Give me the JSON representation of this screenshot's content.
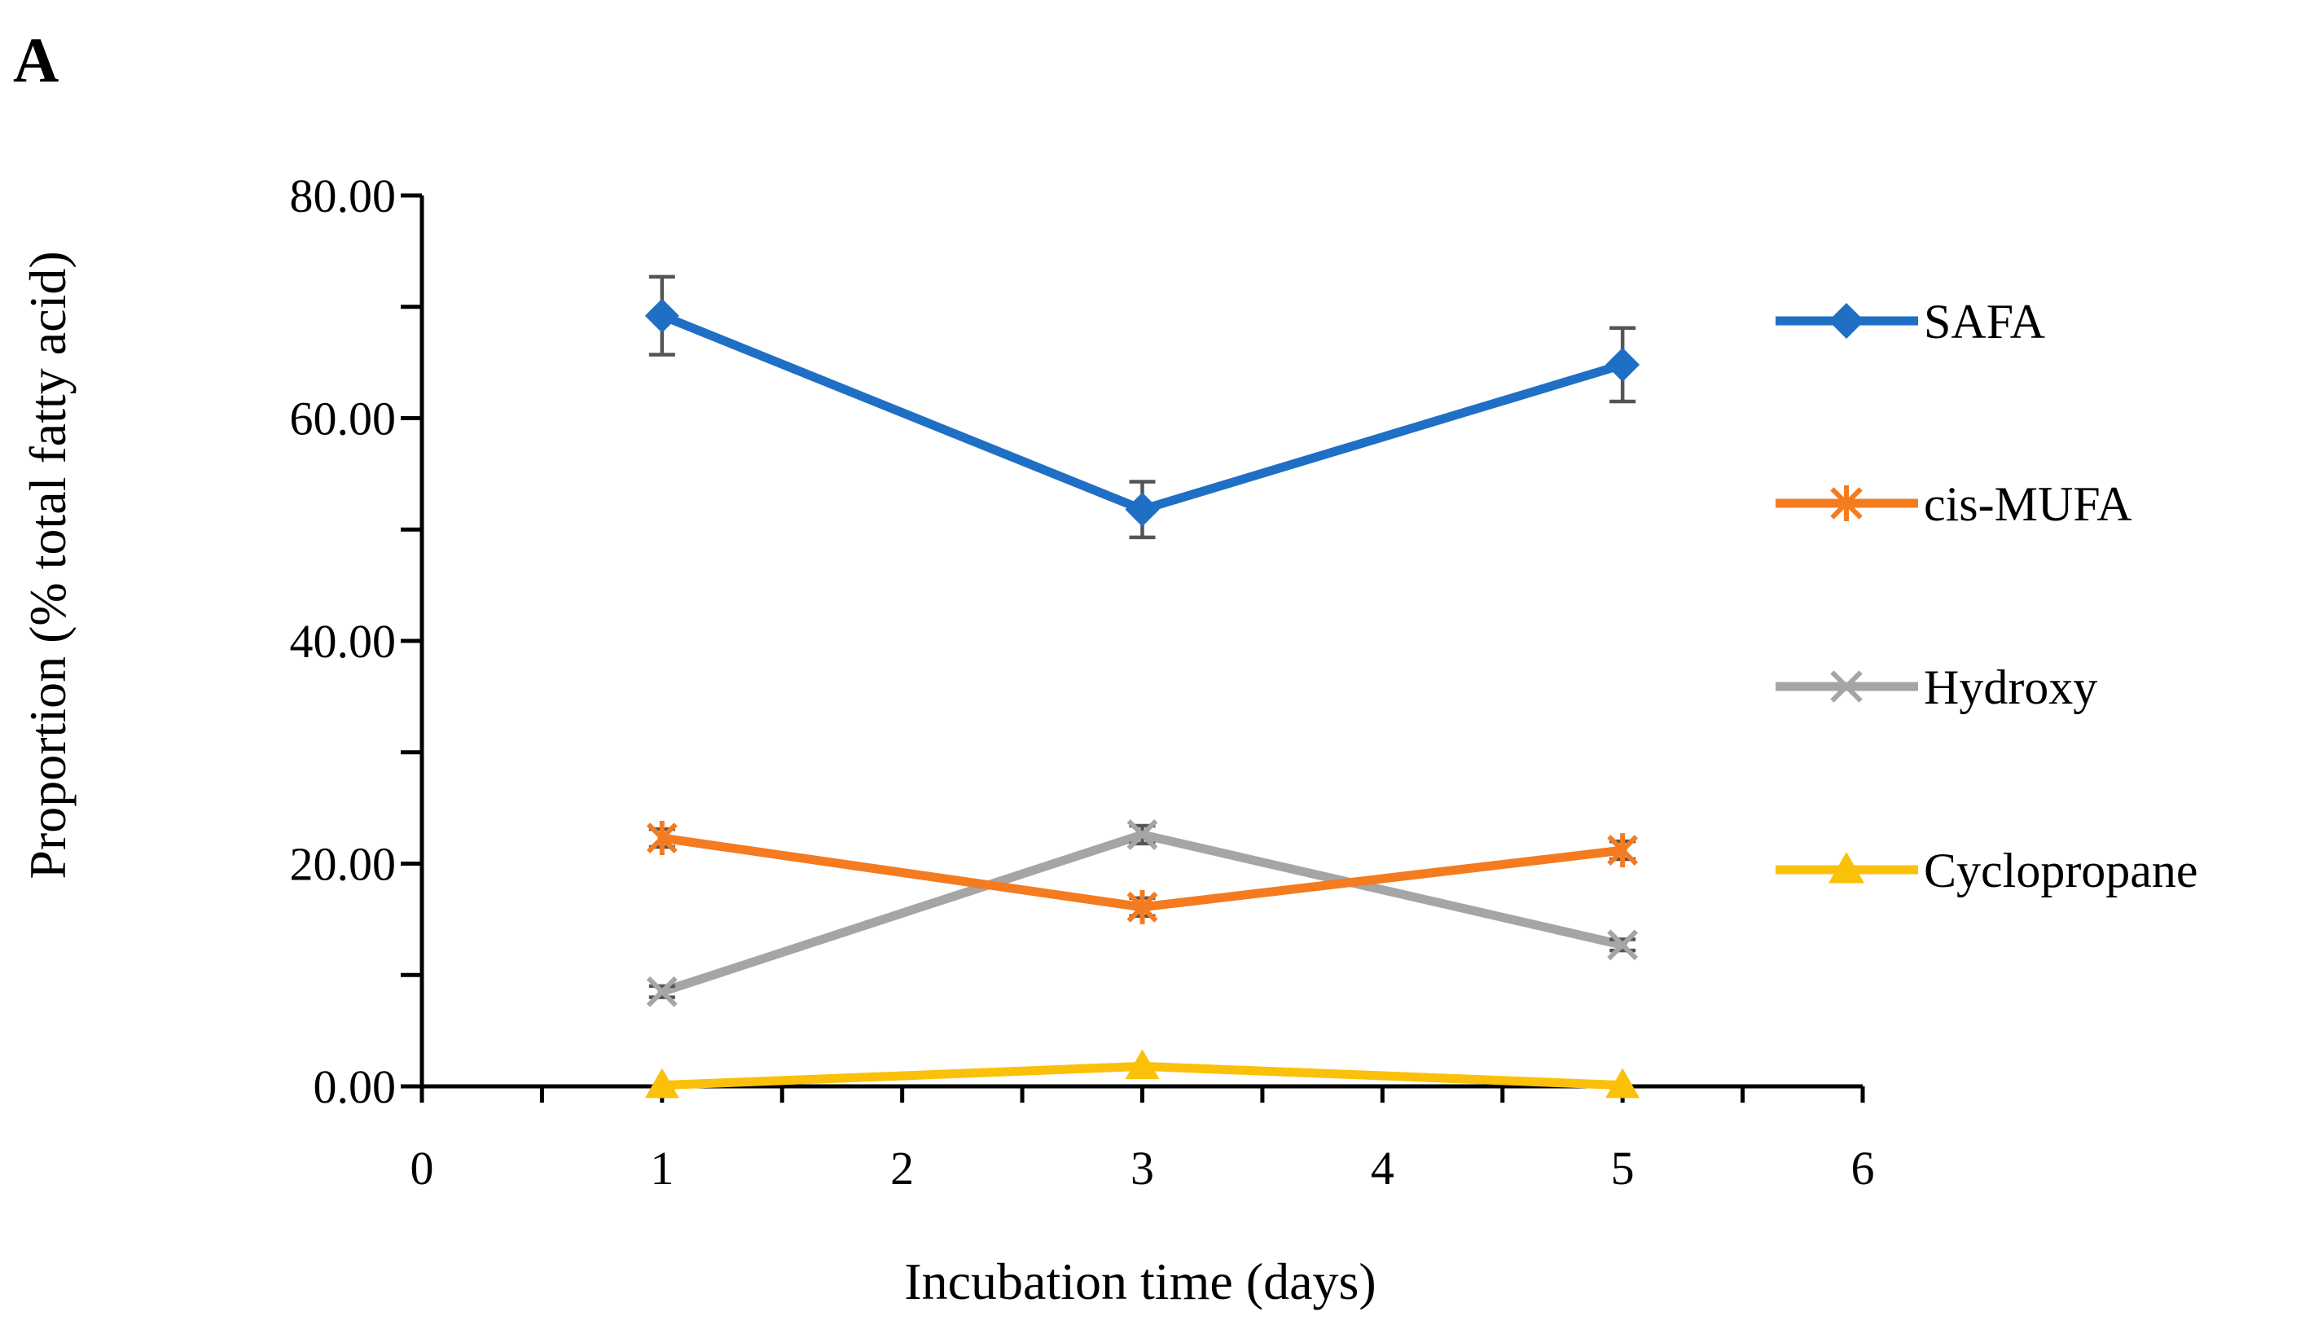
{
  "panel_label": "A",
  "chart_data": {
    "type": "line",
    "x": [
      1,
      3,
      5
    ],
    "xlabel": "Incubation time (days)",
    "ylabel": "Proportion (% total fatty acid)",
    "xlim": [
      0,
      6
    ],
    "ylim": [
      0,
      80
    ],
    "x_ticks": [
      "0",
      "1",
      "2",
      "3",
      "4",
      "5",
      "6"
    ],
    "y_ticks": [
      "0.00",
      "20.00",
      "40.00",
      "60.00",
      "80.00"
    ],
    "series": [
      {
        "name": "SAFA",
        "color": "#1f6fc5",
        "marker": "diamond",
        "values": [
          69.2,
          51.8,
          64.8
        ],
        "errors": [
          3.5,
          2.5,
          3.3
        ]
      },
      {
        "name": "cis-MUFA",
        "color": "#f47b20",
        "marker": "asterisk",
        "values": [
          22.3,
          16.1,
          21.2
        ],
        "errors": [
          0.8,
          0.8,
          0.8
        ]
      },
      {
        "name": "Hydroxy",
        "color": "#a5a5a5",
        "marker": "x",
        "values": [
          8.5,
          22.6,
          12.7
        ],
        "errors": [
          0.5,
          0.8,
          0.5
        ]
      },
      {
        "name": "Cyclopropane",
        "color": "#fbc00a",
        "marker": "triangle",
        "values": [
          0.1,
          1.8,
          0.1
        ],
        "errors": [
          0,
          0,
          0
        ]
      }
    ]
  }
}
